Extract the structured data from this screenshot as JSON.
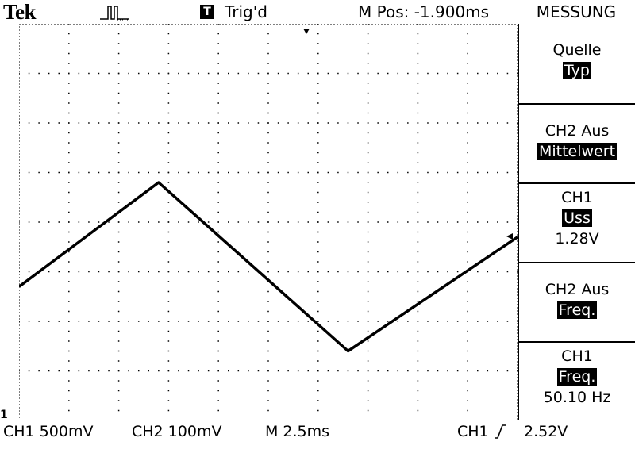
{
  "topbar": {
    "brand": "Tek",
    "acquisition_icon": "pulse-icon",
    "trigger_icon_letter": "T",
    "trigger_status": "Trig'd",
    "main_position": "M Pos: -1.900ms"
  },
  "menu": {
    "title": "MESSUNG",
    "items": [
      {
        "label": "Quelle",
        "highlight": "Typ",
        "value": ""
      },
      {
        "label": "CH2 Aus",
        "highlight": "Mittelwert",
        "value": ""
      },
      {
        "label": "CH1",
        "highlight": "Uss",
        "value": "1.28V"
      },
      {
        "label": "CH2 Aus",
        "highlight": "Freq.",
        "value": ""
      },
      {
        "label": "CH1",
        "highlight": "Freq.",
        "value": "50.10 Hz"
      }
    ]
  },
  "readout": {
    "ch1_scale": "CH1  500mV",
    "ch2_scale": "CH2  100mV",
    "timebase": "M  2.5ms",
    "trigger_source": "CH1",
    "trigger_level": "2.52V"
  },
  "markers": {
    "ch1_ground": "1"
  },
  "waveform": {
    "type": "triangle",
    "points_div": [
      [
        0,
        5.3
      ],
      [
        2.8,
        3.2
      ],
      [
        6.6,
        6.6
      ],
      [
        10,
        4.3
      ]
    ]
  },
  "colors": {
    "background": "#ffffff",
    "trace": "#000000"
  }
}
